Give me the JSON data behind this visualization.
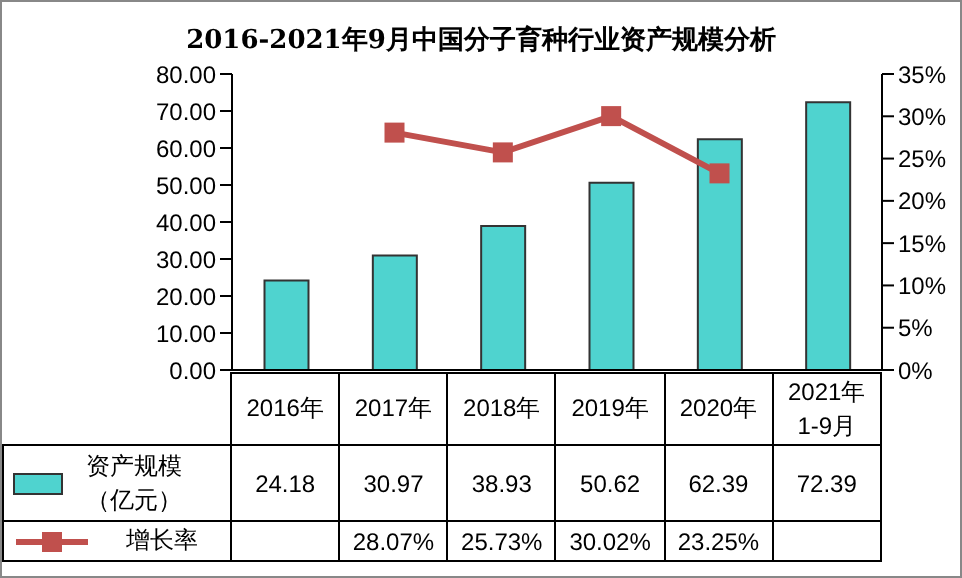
{
  "chart_data": {
    "type": "bar",
    "title": "2016-2021年9月中国分子育种行业资产规模分析",
    "categories": [
      "2016年",
      "2017年",
      "2018年",
      "2019年",
      "2020年",
      "2021年\n1-9月"
    ],
    "series": [
      {
        "name": "资产规模（亿元）",
        "color": "#4fd3cf",
        "values": [
          24.18,
          30.97,
          38.93,
          50.62,
          62.39,
          72.39
        ],
        "value_labels": [
          "24.18",
          "30.97",
          "38.93",
          "50.62",
          "62.39",
          "72.39"
        ]
      },
      {
        "name": "增长率",
        "type": "line",
        "axis": "y2",
        "color": "#c0504d",
        "marker": "square",
        "values": [
          null,
          28.07,
          25.73,
          30.02,
          23.25,
          null
        ],
        "value_labels": [
          null,
          "28.07%",
          "25.73%",
          "30.02%",
          "23.25%",
          null
        ]
      }
    ],
    "ylim": [
      0,
      80
    ],
    "yticks": [
      {
        "value": 0,
        "label": "0.00"
      },
      {
        "value": 10,
        "label": "10.00"
      },
      {
        "value": 20,
        "label": "20.00"
      },
      {
        "value": 30,
        "label": "30.00"
      },
      {
        "value": 40,
        "label": "40.00"
      },
      {
        "value": 50,
        "label": "50.00"
      },
      {
        "value": 60,
        "label": "60.00"
      },
      {
        "value": 70,
        "label": "70.00"
      },
      {
        "value": 80,
        "label": "80.00"
      }
    ],
    "y2lim": [
      0,
      35
    ],
    "y2ticks": [
      {
        "value": 0,
        "label": "0%"
      },
      {
        "value": 5,
        "label": "5%"
      },
      {
        "value": 10,
        "label": "10%"
      },
      {
        "value": 15,
        "label": "15%"
      },
      {
        "value": 20,
        "label": "20%"
      },
      {
        "value": 25,
        "label": "25%"
      },
      {
        "value": 30,
        "label": "30%"
      },
      {
        "value": 35,
        "label": "35%"
      }
    ],
    "legend": "bottom"
  }
}
